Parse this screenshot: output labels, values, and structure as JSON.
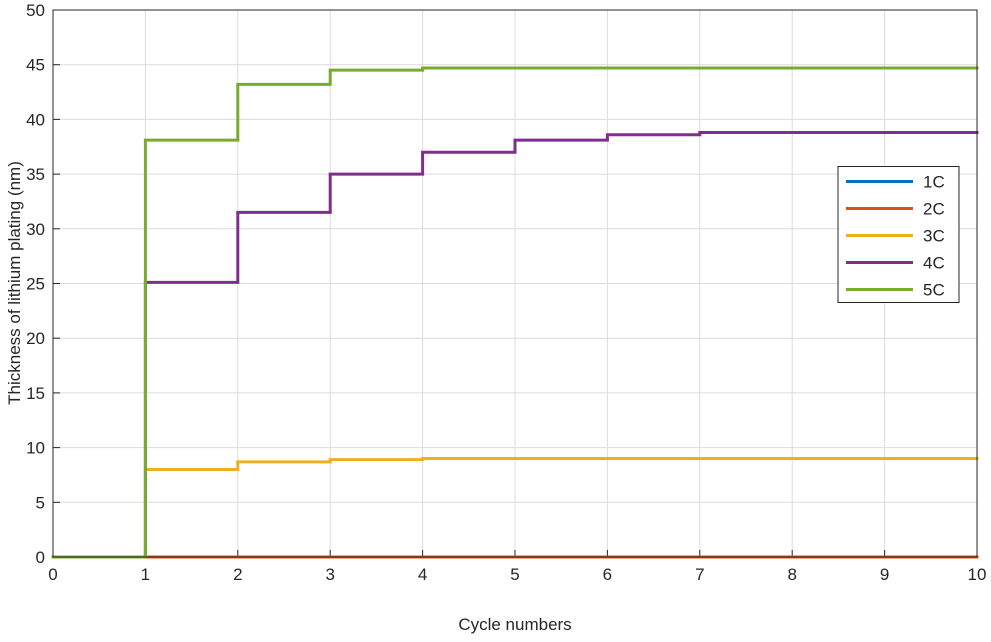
{
  "chart_data": {
    "type": "stairs",
    "xlabel": "Cycle numbers",
    "ylabel": "Thickness of lithium plating (nm)",
    "x": [
      0,
      1,
      2,
      3,
      4,
      5,
      6,
      7,
      8,
      9
    ],
    "series": [
      {
        "name": "1C",
        "color": "#0072bd",
        "values": [
          0,
          0,
          0,
          0,
          0,
          0,
          0,
          0,
          0,
          0
        ]
      },
      {
        "name": "2C",
        "color": "#d95319",
        "values": [
          0,
          0,
          0,
          0,
          0,
          0,
          0,
          0,
          0,
          0
        ]
      },
      {
        "name": "3C",
        "color": "#edb120",
        "values": [
          0,
          8,
          8.7,
          8.9,
          9.0,
          9.0,
          9.0,
          9.0,
          9.0,
          9.0
        ]
      },
      {
        "name": "4C",
        "color": "#7e2f8e",
        "values": [
          0,
          25.1,
          31.5,
          35.0,
          37.0,
          38.1,
          38.6,
          38.8,
          38.8,
          38.8
        ]
      },
      {
        "name": "5C",
        "color": "#77ac30",
        "values": [
          0,
          38.1,
          43.2,
          44.5,
          44.7,
          44.7,
          44.7,
          44.7,
          44.7,
          44.7
        ]
      }
    ],
    "xlim": [
      0,
      10
    ],
    "xticks": [
      0,
      1,
      2,
      3,
      4,
      5,
      6,
      7,
      8,
      9,
      10
    ],
    "ylim": [
      0,
      50
    ],
    "yticks": [
      0,
      5,
      10,
      15,
      20,
      25,
      30,
      35,
      40,
      45,
      50
    ],
    "grid": true,
    "legend_loc": "east"
  }
}
